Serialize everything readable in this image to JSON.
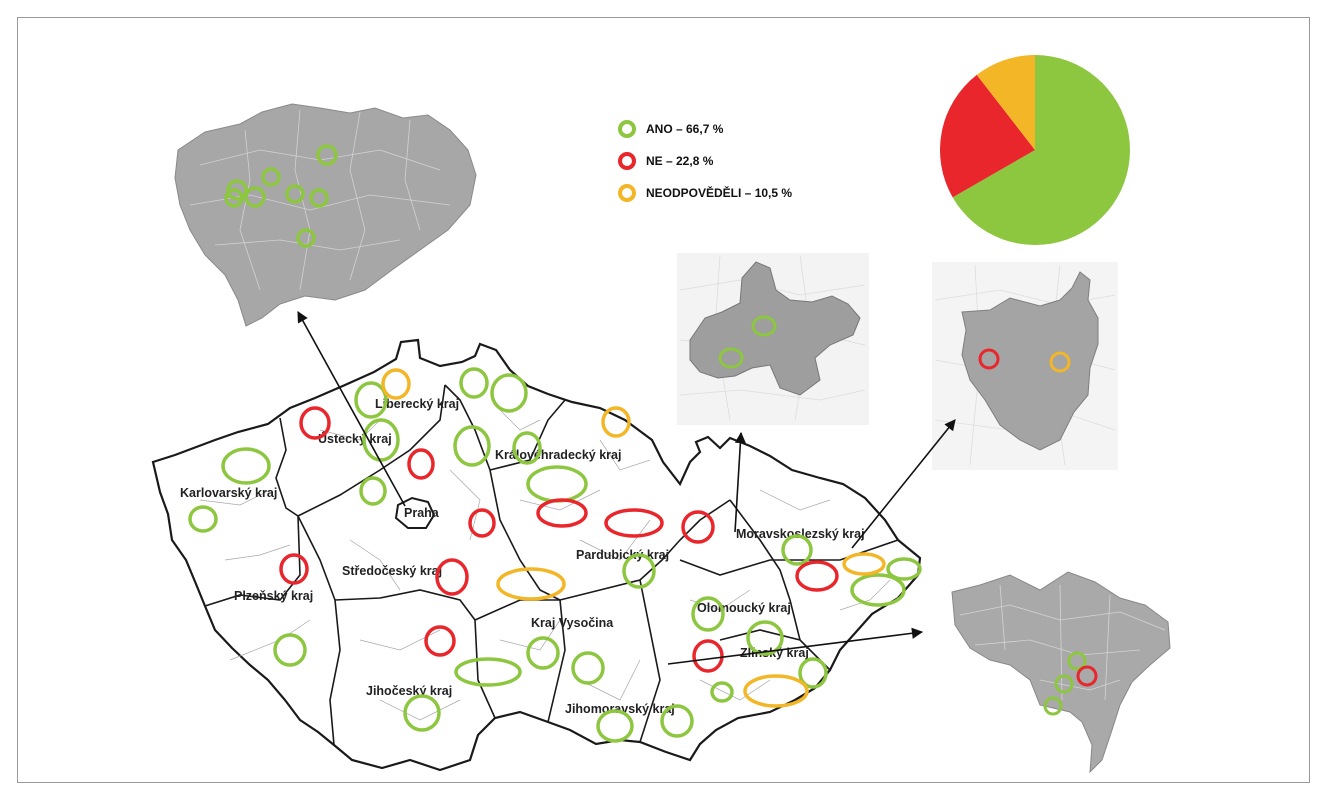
{
  "legend": {
    "items": [
      {
        "label": "ANO – 66,7 %",
        "color": "#8dc63f"
      },
      {
        "label": "NE – 22,8 %",
        "color": "#e8262b"
      },
      {
        "label": "NEODPOVĚDĚLI – 10,5 %",
        "color": "#f3b626"
      }
    ]
  },
  "pie": {
    "slices": [
      {
        "name": "ANO",
        "value": 66.7,
        "color": "#8dc63f"
      },
      {
        "name": "NE",
        "value": 22.8,
        "color": "#e8262b"
      },
      {
        "name": "NEODPOVĚDĚLI",
        "value": 10.5,
        "color": "#f3b626"
      }
    ]
  },
  "regions": {
    "liberecky": "Liberecký kraj",
    "ustecky": "Ústecký kraj",
    "karlovarsky": "Karlovarský kraj",
    "kralovehradecky": "Královéhradecký kraj",
    "praha": "Praha",
    "moravskoslezsky": "Moravskoslezský kraj",
    "stredocesky": "Středočeský kraj",
    "pardubicky": "Pardubický kraj",
    "plzensky": "Plzeňský kraj",
    "olomoucky": "Olomoucký kraj",
    "vysocina": "Kraj Vysočina",
    "zlinsky": "Zlínský kraj",
    "jihocesky": "Jihočeský kraj",
    "jihomoravsky": "Jihomoravský kraj"
  },
  "colors": {
    "map_fill": "#b9b9b9",
    "map_stroke": "#222222",
    "inset_fill": "#a5a5a5",
    "frame": "#9a9a9a"
  }
}
